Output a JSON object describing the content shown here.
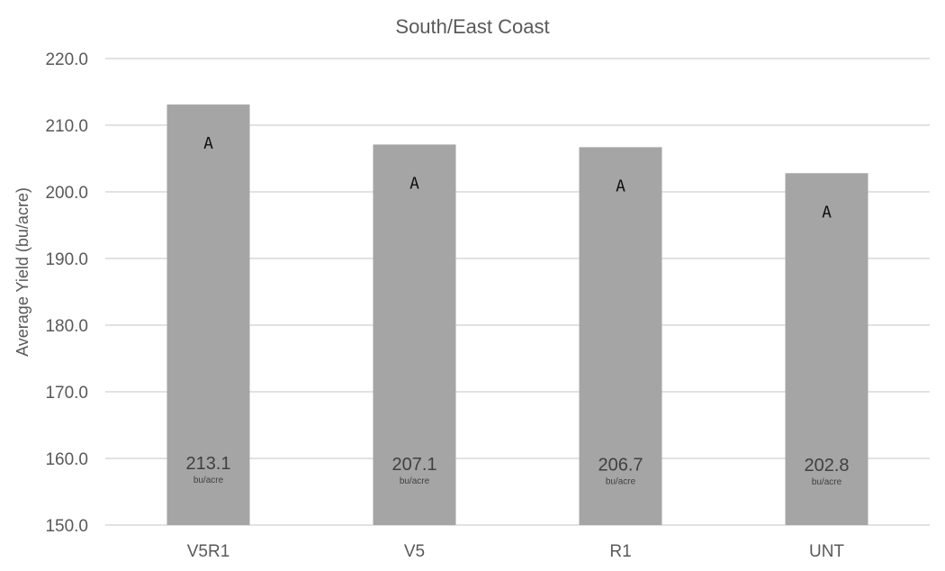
{
  "chart_data": {
    "type": "bar",
    "title": "South/East Coast",
    "xlabel": "",
    "ylabel": "Average Yield (bu/acre)",
    "ylim": [
      150.0,
      220.0
    ],
    "yticks": [
      "150.0",
      "160.0",
      "170.0",
      "180.0",
      "190.0",
      "200.0",
      "210.0",
      "220.0"
    ],
    "grid": true,
    "categories": [
      "V5R1",
      "V5",
      "R1",
      "UNT"
    ],
    "values": [
      213.1,
      207.1,
      206.7,
      202.8
    ],
    "value_labels": [
      "213.1",
      "207.1",
      "206.7",
      "202.8"
    ],
    "unit_label": "bu/acre",
    "significance_letters": [
      "A",
      "A",
      "A",
      "A"
    ],
    "colors": {
      "bar": "#a6a5a5",
      "grid": "#d9d9d9",
      "text": "#595959"
    }
  }
}
